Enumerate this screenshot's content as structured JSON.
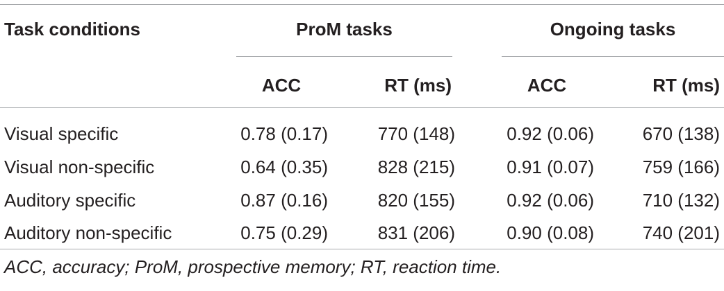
{
  "table": {
    "header": {
      "task_conditions": "Task conditions",
      "group_prom": "ProM tasks",
      "group_ongoing": "Ongoing tasks",
      "sub": [
        "ACC",
        "RT (ms)",
        "ACC",
        "RT (ms)"
      ]
    },
    "rows": [
      {
        "label": "Visual specific",
        "cells": [
          "0.78 (0.17)",
          "770 (148)",
          "0.92 (0.06)",
          "670 (138)"
        ]
      },
      {
        "label": "Visual non-specific",
        "cells": [
          "0.64 (0.35)",
          "828 (215)",
          "0.91 (0.07)",
          "759 (166)"
        ]
      },
      {
        "label": "Auditory specific",
        "cells": [
          "0.87 (0.16)",
          "820 (155)",
          "0.92 (0.06)",
          "710 (132)"
        ]
      },
      {
        "label": "Auditory non-specific",
        "cells": [
          "0.75 (0.29)",
          "831 (206)",
          "0.90 (0.08)",
          "740 (201)"
        ]
      }
    ]
  },
  "footnote": "ACC, accuracy; ProM, prospective memory; RT, reaction time."
}
